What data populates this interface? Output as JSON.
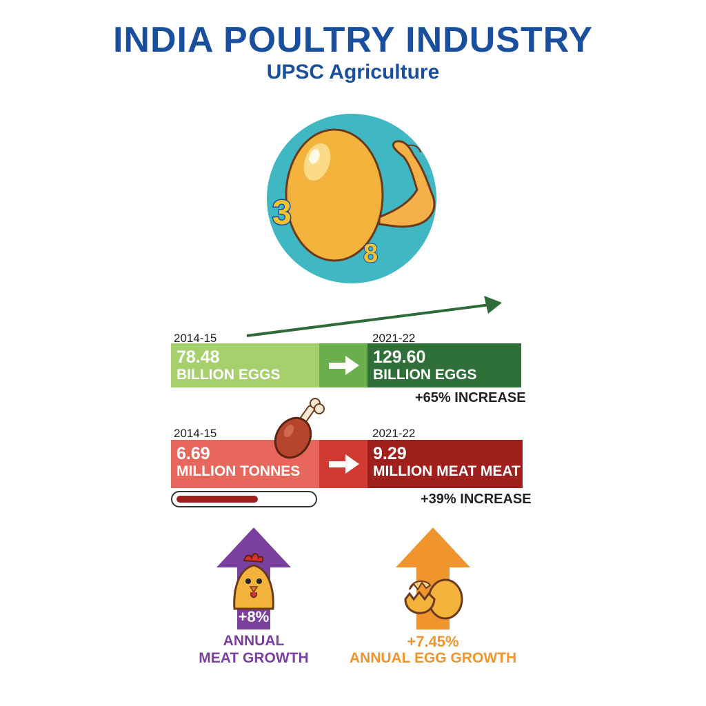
{
  "header": {
    "title": "INDIA POULTRY INDUSTRY",
    "subtitle": "UPSC Agriculture"
  },
  "hero": {
    "icon": "egg-with-flexed-arm-icon",
    "digits": [
      "3",
      "8"
    ],
    "bg_color": "#3fb8c4"
  },
  "eggs": {
    "from_year": "2014-15",
    "to_year": "2021-22",
    "from_value": "78.48",
    "from_unit": "BILLION EGGS",
    "to_value": "129.60",
    "to_unit": "BILLION EGGS",
    "increase": "+65% INCREASE",
    "colors": {
      "from": "#a6d06b",
      "mid": "#6aae4e",
      "to": "#2f7038"
    }
  },
  "meat": {
    "from_year": "2014-15",
    "to_year": "2021-22",
    "from_value": "6.69",
    "from_unit": "MILLION TONNES",
    "to_value": "9.29",
    "to_unit": "MILLION MEAT MEAT",
    "increase": "+39% INCREASE",
    "icon": "chicken-drumstick-icon",
    "progress_fraction": 0.6,
    "colors": {
      "from": "#e8675d",
      "mid": "#cf3b33",
      "to": "#9e1f1c"
    }
  },
  "growth": {
    "meat_pct": "+8%",
    "meat_line1": "ANNUAL",
    "meat_line2": "MEAT GROWTH",
    "meat_icon": "chicken-icon",
    "meat_color": "#7b3fa0",
    "egg_pct": "+7.45%",
    "egg_label": "ANNUAL EGG GROWTH",
    "egg_icon": "cracked-egg-icon",
    "egg_color": "#f0952e"
  }
}
